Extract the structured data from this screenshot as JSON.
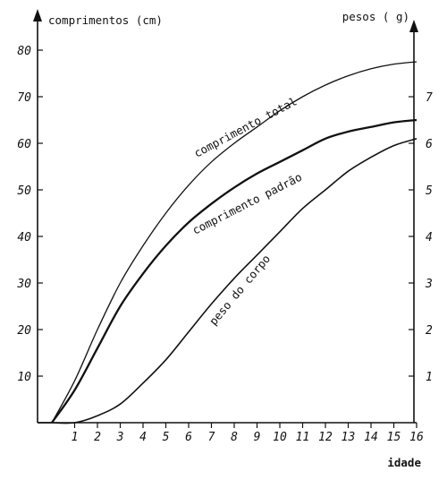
{
  "chart_data": {
    "type": "line",
    "title": "",
    "xlabel": "idade",
    "ylabel_left": "comprimentos (cm)",
    "ylabel_right": "pesos ( g)",
    "x": [
      0,
      1,
      2,
      3,
      4,
      5,
      6,
      7,
      8,
      9,
      10,
      11,
      12,
      13,
      14,
      15,
      16
    ],
    "xlim": [
      -0.5,
      16
    ],
    "ylim_left": [
      0,
      85
    ],
    "ylim_right": [
      0,
      8.5
    ],
    "xticks": [
      "1",
      "2",
      "3",
      "4",
      "5",
      "6",
      "7",
      "8",
      "9",
      "10",
      "11",
      "12",
      "13",
      "14",
      "15",
      "16"
    ],
    "yticks_left": [
      "10",
      "20",
      "30",
      "40",
      "50",
      "60",
      "70",
      "80"
    ],
    "yticks_right": [
      "1",
      "2",
      "3",
      "4",
      "5",
      "6",
      "7"
    ],
    "grid": false,
    "series": [
      {
        "name": "comprimento total",
        "axis": "left",
        "values": [
          0,
          9,
          20,
          30,
          38,
          45,
          51,
          56,
          60,
          63.5,
          67,
          70,
          72.5,
          74.5,
          76,
          77,
          77.5
        ]
      },
      {
        "name": "comprimento padrão",
        "axis": "left",
        "values": [
          0,
          7,
          16,
          25,
          32,
          38,
          43,
          47,
          50.5,
          53.5,
          56,
          58.5,
          61,
          62.5,
          63.5,
          64.5,
          65
        ]
      },
      {
        "name": "peso do corpo",
        "axis": "right",
        "values": [
          0,
          0,
          0.15,
          0.4,
          0.85,
          1.35,
          1.95,
          2.55,
          3.1,
          3.6,
          4.1,
          4.6,
          5.0,
          5.4,
          5.7,
          5.95,
          6.1
        ]
      }
    ]
  }
}
